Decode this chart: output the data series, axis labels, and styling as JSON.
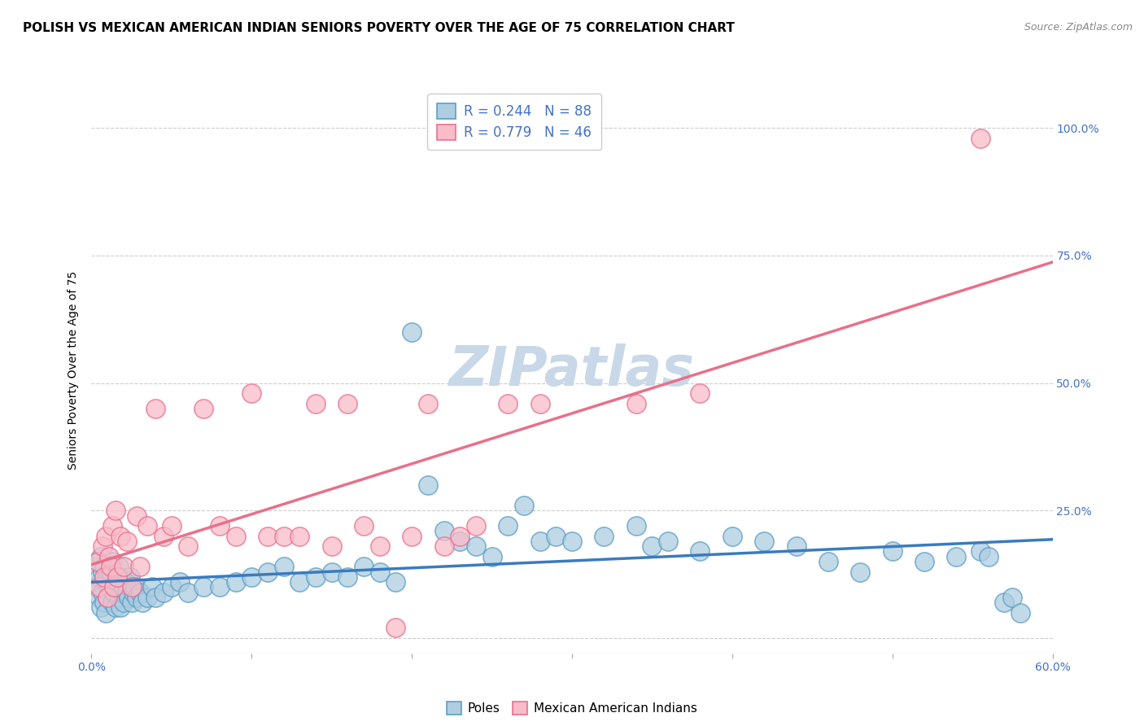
{
  "title": "POLISH VS MEXICAN AMERICAN INDIAN SENIORS POVERTY OVER THE AGE OF 75 CORRELATION CHART",
  "source": "Source: ZipAtlas.com",
  "ylabel": "Seniors Poverty Over the Age of 75",
  "xlim": [
    0.0,
    0.6
  ],
  "ylim": [
    -0.03,
    1.08
  ],
  "xticks": [
    0.0,
    0.1,
    0.2,
    0.3,
    0.4,
    0.5,
    0.6
  ],
  "xticklabels": [
    "0.0%",
    "",
    "",
    "",
    "",
    "",
    "60.0%"
  ],
  "yticks": [
    0.0,
    0.25,
    0.5,
    0.75,
    1.0
  ],
  "yticklabels": [
    "",
    "25.0%",
    "50.0%",
    "75.0%",
    "100.0%"
  ],
  "poles_R": 0.244,
  "poles_N": 88,
  "mexican_R": 0.779,
  "mexican_N": 46,
  "poles_scatter_color": "#aecde1",
  "poles_edge_color": "#5b9fc4",
  "poles_line_color": "#3a7bbf",
  "mexican_scatter_color": "#f9bcc8",
  "mexican_edge_color": "#e87090",
  "mexican_line_color": "#e8708a",
  "watermark": "ZIPatlas",
  "watermark_color": "#c8d8e8",
  "background_color": "#ffffff",
  "grid_color": "#cccccc",
  "title_fontsize": 11,
  "axis_label_fontsize": 10,
  "tick_fontsize": 10,
  "legend_fontsize": 12,
  "poles_x": [
    0.003,
    0.004,
    0.005,
    0.005,
    0.006,
    0.006,
    0.007,
    0.007,
    0.008,
    0.008,
    0.009,
    0.009,
    0.01,
    0.01,
    0.011,
    0.012,
    0.013,
    0.013,
    0.014,
    0.015,
    0.015,
    0.016,
    0.017,
    0.017,
    0.018,
    0.018,
    0.019,
    0.02,
    0.02,
    0.021,
    0.022,
    0.023,
    0.024,
    0.025,
    0.026,
    0.027,
    0.028,
    0.03,
    0.032,
    0.035,
    0.038,
    0.04,
    0.045,
    0.05,
    0.055,
    0.06,
    0.07,
    0.08,
    0.09,
    0.1,
    0.11,
    0.12,
    0.13,
    0.14,
    0.15,
    0.16,
    0.17,
    0.18,
    0.19,
    0.2,
    0.21,
    0.22,
    0.23,
    0.24,
    0.25,
    0.26,
    0.27,
    0.28,
    0.29,
    0.3,
    0.32,
    0.34,
    0.35,
    0.36,
    0.38,
    0.4,
    0.42,
    0.44,
    0.46,
    0.48,
    0.5,
    0.52,
    0.54,
    0.555,
    0.56,
    0.57,
    0.575,
    0.58
  ],
  "poles_y": [
    0.1,
    0.15,
    0.12,
    0.08,
    0.16,
    0.06,
    0.13,
    0.09,
    0.14,
    0.07,
    0.11,
    0.05,
    0.12,
    0.08,
    0.1,
    0.13,
    0.07,
    0.15,
    0.09,
    0.11,
    0.06,
    0.1,
    0.08,
    0.14,
    0.06,
    0.12,
    0.09,
    0.1,
    0.07,
    0.11,
    0.09,
    0.08,
    0.12,
    0.07,
    0.09,
    0.1,
    0.08,
    0.09,
    0.07,
    0.08,
    0.1,
    0.08,
    0.09,
    0.1,
    0.11,
    0.09,
    0.1,
    0.1,
    0.11,
    0.12,
    0.13,
    0.14,
    0.11,
    0.12,
    0.13,
    0.12,
    0.14,
    0.13,
    0.11,
    0.6,
    0.3,
    0.21,
    0.19,
    0.18,
    0.16,
    0.22,
    0.26,
    0.19,
    0.2,
    0.19,
    0.2,
    0.22,
    0.18,
    0.19,
    0.17,
    0.2,
    0.19,
    0.18,
    0.15,
    0.13,
    0.17,
    0.15,
    0.16,
    0.17,
    0.16,
    0.07,
    0.08,
    0.05
  ],
  "mexican_x": [
    0.004,
    0.005,
    0.007,
    0.008,
    0.009,
    0.01,
    0.011,
    0.012,
    0.013,
    0.014,
    0.015,
    0.016,
    0.018,
    0.02,
    0.022,
    0.025,
    0.028,
    0.03,
    0.035,
    0.04,
    0.045,
    0.05,
    0.06,
    0.07,
    0.08,
    0.09,
    0.1,
    0.11,
    0.12,
    0.13,
    0.14,
    0.15,
    0.16,
    0.17,
    0.18,
    0.19,
    0.2,
    0.21,
    0.22,
    0.23,
    0.24,
    0.26,
    0.28,
    0.34,
    0.38,
    0.555
  ],
  "mexican_y": [
    0.15,
    0.1,
    0.18,
    0.12,
    0.2,
    0.08,
    0.16,
    0.14,
    0.22,
    0.1,
    0.25,
    0.12,
    0.2,
    0.14,
    0.19,
    0.1,
    0.24,
    0.14,
    0.22,
    0.45,
    0.2,
    0.22,
    0.18,
    0.45,
    0.22,
    0.2,
    0.48,
    0.2,
    0.2,
    0.2,
    0.46,
    0.18,
    0.46,
    0.22,
    0.18,
    0.02,
    0.2,
    0.46,
    0.18,
    0.2,
    0.22,
    0.46,
    0.46,
    0.46,
    0.48,
    0.98
  ]
}
